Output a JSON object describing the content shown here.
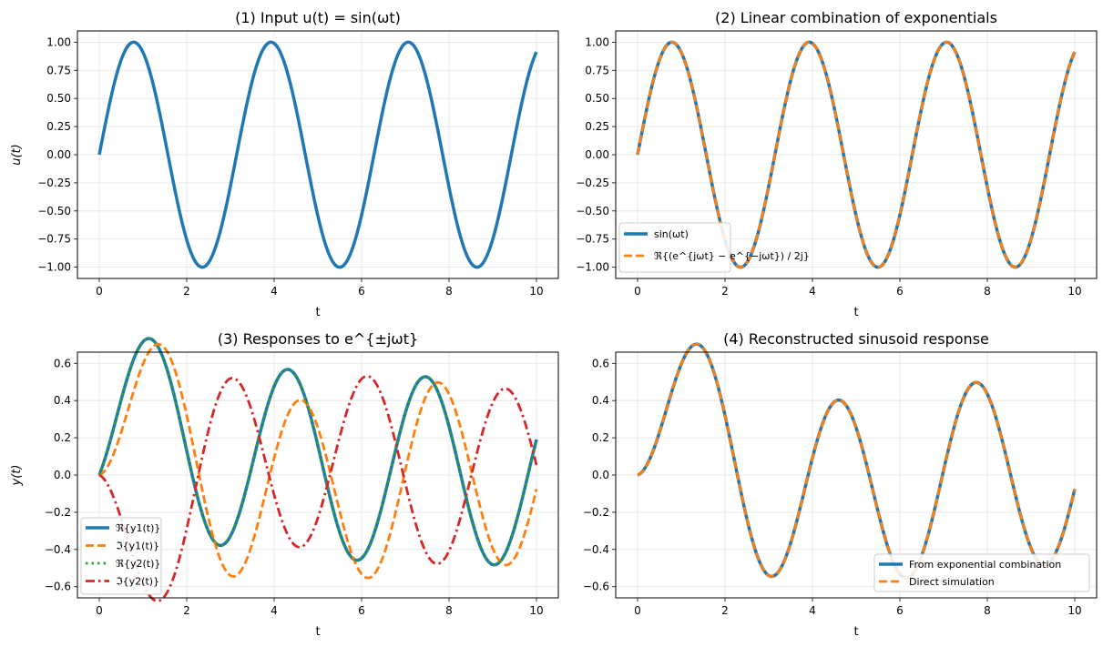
{
  "colors": {
    "blue": "#1f77b4",
    "orange": "#ff7f0e",
    "green": "#2ca02c",
    "red": "#d62728"
  },
  "chart_data": [
    {
      "id": "p1",
      "type": "line",
      "title": "(1) Input u(t) = sin(ωt)",
      "xlabel": "t",
      "ylabel": "u(t)",
      "xlim": [
        -0.5,
        10.5
      ],
      "ylim": [
        -1.1,
        1.1
      ],
      "xticks": [
        "0",
        "2",
        "4",
        "6",
        "8",
        "10"
      ],
      "yticks": [
        "-1.00",
        "-0.75",
        "-0.50",
        "-0.25",
        "0.00",
        "0.25",
        "0.50",
        "0.75",
        "1.00"
      ],
      "omega": 2.0,
      "series": [
        {
          "name": "u(t)",
          "formula": "sin",
          "color": "#1f77b4",
          "style": "solid"
        }
      ]
    },
    {
      "id": "p2",
      "type": "line",
      "title": "(2) Linear combination of exponentials",
      "xlabel": "t",
      "ylabel": "",
      "xlim": [
        -0.5,
        10.5
      ],
      "ylim": [
        -1.1,
        1.1
      ],
      "xticks": [
        "0",
        "2",
        "4",
        "6",
        "8",
        "10"
      ],
      "yticks": [
        "-1.00",
        "-0.75",
        "-0.50",
        "-0.25",
        "0.00",
        "0.25",
        "0.50",
        "0.75",
        "1.00"
      ],
      "omega": 2.0,
      "legend_position": "lower-left",
      "series": [
        {
          "name": "sin(ωt)",
          "formula": "sin",
          "color": "#1f77b4",
          "style": "solid"
        },
        {
          "name": "ℜ{(e^{jωt} − e^{−jωt}) / 2j}",
          "formula": "sin",
          "color": "#ff7f0e",
          "style": "dashed"
        }
      ]
    },
    {
      "id": "p3",
      "type": "line",
      "title": "(3) Responses to e^{±jωt}",
      "xlabel": "t",
      "ylabel": "y(t)",
      "xlim": [
        -0.5,
        10.5
      ],
      "ylim": [
        -0.66,
        0.66
      ],
      "xticks": [
        "0",
        "2",
        "4",
        "6",
        "8",
        "10"
      ],
      "yticks": [
        "-0.6",
        "-0.4",
        "-0.2",
        "0.0",
        "0.2",
        "0.4",
        "0.6"
      ],
      "omega": 2.0,
      "legend_position": "lower-left",
      "series": [
        {
          "name": "ℜ{y1(t)}",
          "formula": "reY",
          "color": "#1f77b4",
          "style": "solid"
        },
        {
          "name": "ℑ{y1(t)}",
          "formula": "imY1",
          "color": "#ff7f0e",
          "style": "dashed"
        },
        {
          "name": "ℜ{y2(t)}",
          "formula": "reY",
          "color": "#2ca02c",
          "style": "dotted"
        },
        {
          "name": "ℑ{y2(t)}",
          "formula": "imY2",
          "color": "#d62728",
          "style": "dashdot"
        }
      ]
    },
    {
      "id": "p4",
      "type": "line",
      "title": "(4) Reconstructed sinusoid response",
      "xlabel": "t",
      "ylabel": "",
      "xlim": [
        -0.5,
        10.5
      ],
      "ylim": [
        -0.66,
        0.66
      ],
      "xticks": [
        "0",
        "2",
        "4",
        "6",
        "8",
        "10"
      ],
      "yticks": [
        "-0.6",
        "-0.4",
        "-0.2",
        "0.0",
        "0.2",
        "0.4",
        "0.6"
      ],
      "omega": 2.0,
      "legend_position": "lower-right",
      "series": [
        {
          "name": "From exponential combination",
          "formula": "imY1",
          "color": "#1f77b4",
          "style": "solid"
        },
        {
          "name": "Direct simulation",
          "formula": "imY1",
          "color": "#ff7f0e",
          "style": "dashed"
        }
      ]
    }
  ]
}
